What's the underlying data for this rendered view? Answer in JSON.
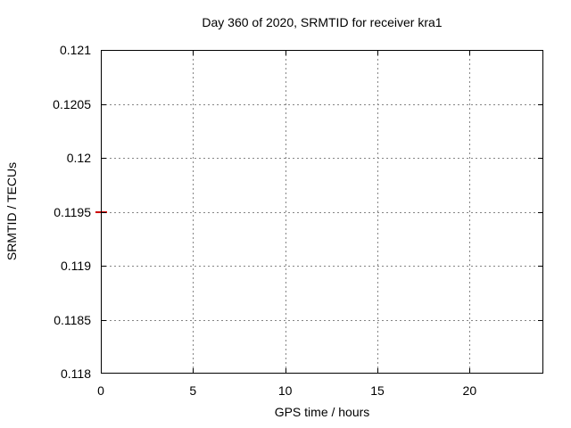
{
  "chart_data": {
    "type": "scatter",
    "title": "Day 360 of 2020, SRMTID for receiver kra1",
    "xlabel": "GPS time / hours",
    "ylabel": "SRMTID / TECUs",
    "xlim": [
      0,
      24
    ],
    "ylim": [
      0.118,
      0.121
    ],
    "xticks": [
      0,
      5,
      10,
      15,
      20
    ],
    "xtick_labels": [
      "0",
      "5",
      "10",
      "15",
      "20"
    ],
    "yticks": [
      0.118,
      0.1185,
      0.119,
      0.1195,
      0.12,
      0.1205,
      0.121
    ],
    "ytick_labels": [
      "0.118",
      "0.1185",
      "0.119",
      "0.1195",
      "0.12",
      "0.1205",
      "0.121"
    ],
    "grid": true,
    "legend": "none",
    "colors": {
      "background": "#ffffff",
      "axis": "#000000",
      "grid": "#858585",
      "text": "#000000",
      "series": "#cc0000"
    },
    "series": [
      {
        "name": "SRMTID",
        "color": "#cc0000",
        "marker": "horizontal-dash",
        "points": [
          {
            "x": 0,
            "y": 0.1195
          }
        ]
      }
    ]
  }
}
